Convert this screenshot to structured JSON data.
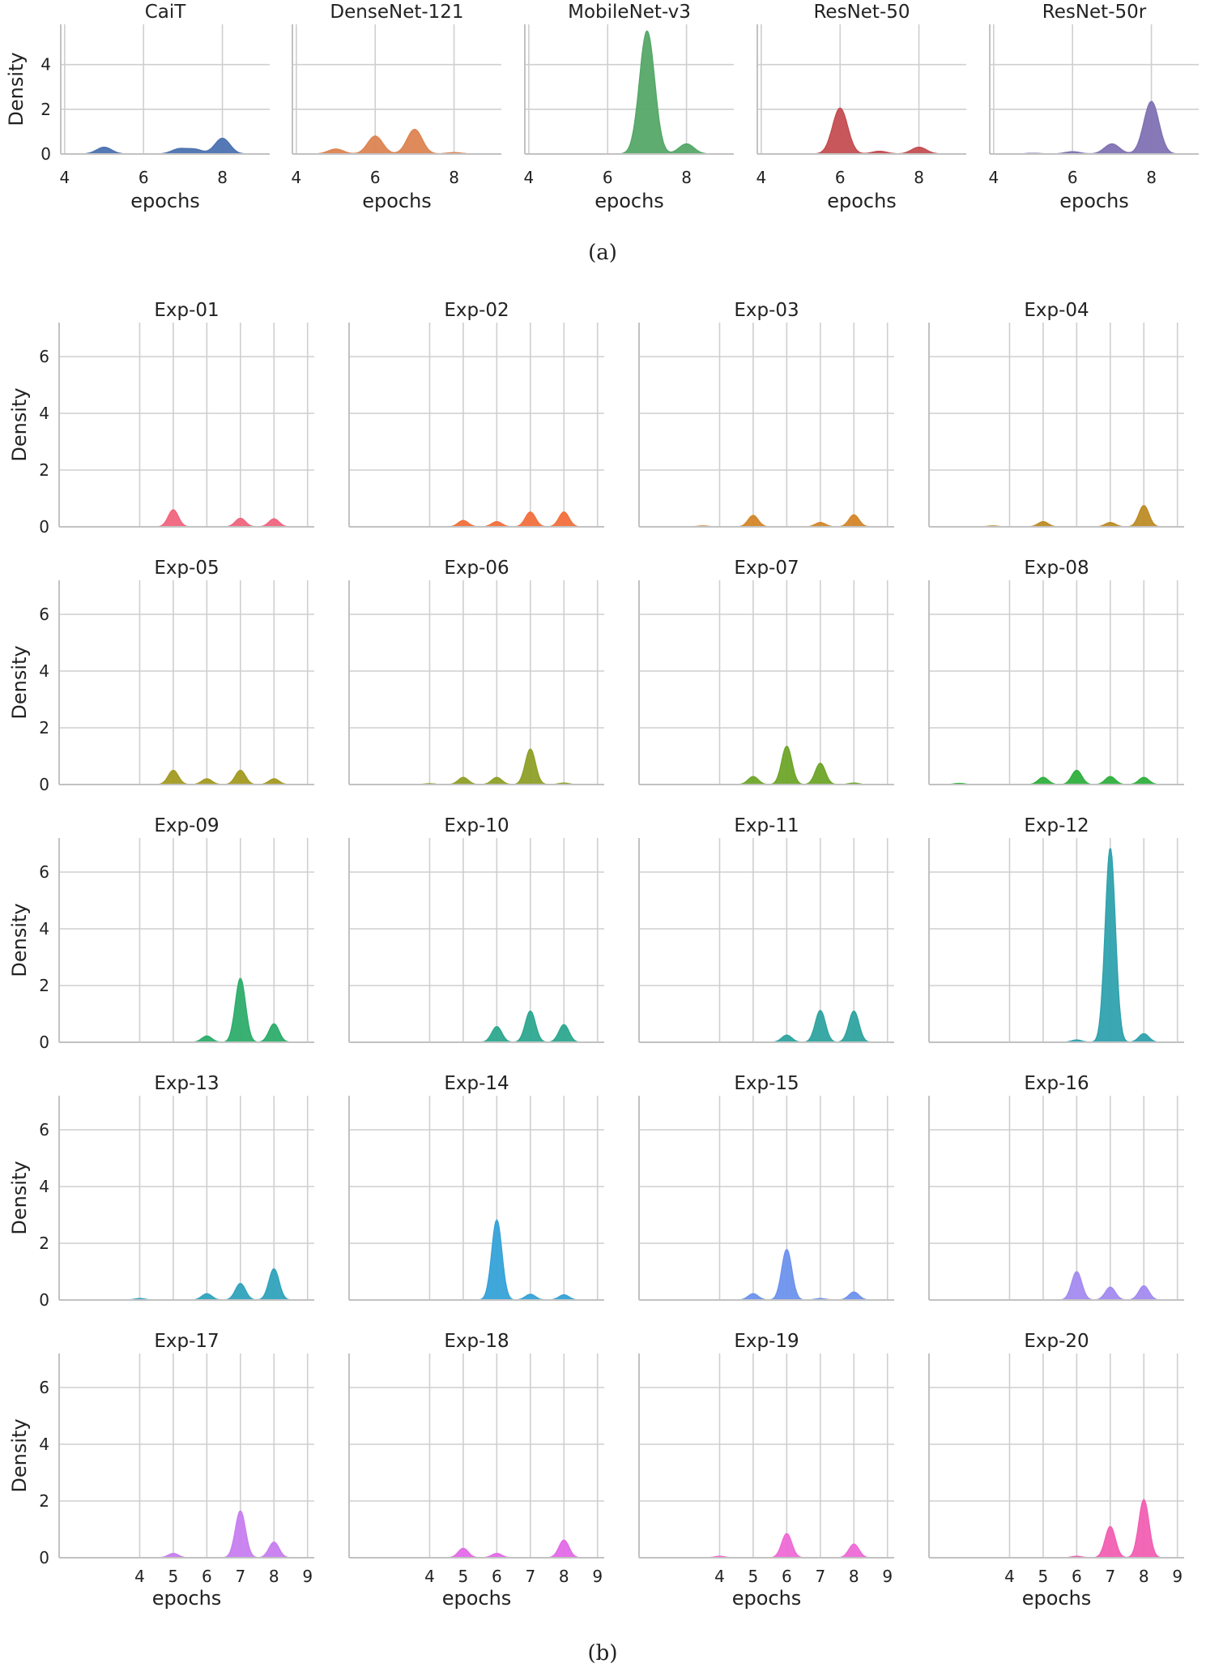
{
  "chart_data": [
    {
      "type": "area",
      "kind": "kde",
      "caption": "(a)",
      "xlabel": "epochs",
      "ylabel": "Density",
      "xlim": [
        3.9,
        9.2
      ],
      "xticks": [
        4,
        6,
        8
      ],
      "ylim": [
        0,
        5.8
      ],
      "yticks": [
        0,
        2,
        4
      ],
      "grid": true,
      "panels": [
        {
          "title": "CaiT",
          "color": "#4c72b0",
          "peaks": [
            {
              "x": 5.0,
              "y": 0.3
            },
            {
              "x": 6.9,
              "y": 0.22
            },
            {
              "x": 7.3,
              "y": 0.2
            },
            {
              "x": 8.0,
              "y": 0.7
            }
          ]
        },
        {
          "title": "DenseNet-121",
          "color": "#dd8452",
          "peaks": [
            {
              "x": 5.0,
              "y": 0.22
            },
            {
              "x": 6.0,
              "y": 0.8
            },
            {
              "x": 7.0,
              "y": 1.1
            },
            {
              "x": 8.0,
              "y": 0.06
            }
          ]
        },
        {
          "title": "MobileNet-v3",
          "color": "#55a868",
          "peaks": [
            {
              "x": 7.0,
              "y": 5.5
            },
            {
              "x": 8.0,
              "y": 0.45
            }
          ]
        },
        {
          "title": "ResNet-50",
          "color": "#c44e52",
          "peaks": [
            {
              "x": 6.0,
              "y": 2.05
            },
            {
              "x": 7.0,
              "y": 0.12
            },
            {
              "x": 8.0,
              "y": 0.3
            }
          ]
        },
        {
          "title": "ResNet-50r",
          "color": "#8172b3",
          "peaks": [
            {
              "x": 5.0,
              "y": 0.03
            },
            {
              "x": 6.0,
              "y": 0.1
            },
            {
              "x": 7.0,
              "y": 0.45
            },
            {
              "x": 8.0,
              "y": 2.35
            }
          ]
        }
      ]
    },
    {
      "type": "area",
      "kind": "kde",
      "caption": "(b)",
      "xlabel": "epochs",
      "ylabel": "Density",
      "xlim": [
        1.6,
        9.2
      ],
      "xticks": [
        4,
        5,
        6,
        7,
        8,
        9
      ],
      "ylim": [
        0,
        7.2
      ],
      "yticks": [
        0,
        2,
        4,
        6
      ],
      "grid": true,
      "panels": [
        {
          "title": "Exp-01",
          "color": "#f0657e",
          "peaks": [
            {
              "x": 5.0,
              "y": 0.6
            },
            {
              "x": 7.0,
              "y": 0.3
            },
            {
              "x": 8.0,
              "y": 0.28
            }
          ]
        },
        {
          "title": "Exp-02",
          "color": "#f2703c",
          "peaks": [
            {
              "x": 5.0,
              "y": 0.22
            },
            {
              "x": 6.0,
              "y": 0.18
            },
            {
              "x": 7.0,
              "y": 0.52
            },
            {
              "x": 8.0,
              "y": 0.52
            }
          ]
        },
        {
          "title": "Exp-03",
          "color": "#d4862a",
          "peaks": [
            {
              "x": 3.5,
              "y": 0.03
            },
            {
              "x": 5.0,
              "y": 0.4
            },
            {
              "x": 7.0,
              "y": 0.15
            },
            {
              "x": 8.0,
              "y": 0.42
            }
          ]
        },
        {
          "title": "Exp-04",
          "color": "#bd8c26",
          "peaks": [
            {
              "x": 3.5,
              "y": 0.03
            },
            {
              "x": 5.0,
              "y": 0.18
            },
            {
              "x": 7.0,
              "y": 0.15
            },
            {
              "x": 8.0,
              "y": 0.75
            }
          ]
        },
        {
          "title": "Exp-05",
          "color": "#a39a22",
          "peaks": [
            {
              "x": 5.0,
              "y": 0.5
            },
            {
              "x": 6.0,
              "y": 0.2
            },
            {
              "x": 7.0,
              "y": 0.5
            },
            {
              "x": 8.0,
              "y": 0.2
            }
          ]
        },
        {
          "title": "Exp-06",
          "color": "#8fa028",
          "peaks": [
            {
              "x": 4.0,
              "y": 0.03
            },
            {
              "x": 5.0,
              "y": 0.25
            },
            {
              "x": 6.0,
              "y": 0.25
            },
            {
              "x": 7.0,
              "y": 1.25
            },
            {
              "x": 8.0,
              "y": 0.05
            }
          ]
        },
        {
          "title": "Exp-07",
          "color": "#6ea52a",
          "peaks": [
            {
              "x": 5.0,
              "y": 0.28
            },
            {
              "x": 6.0,
              "y": 1.35
            },
            {
              "x": 7.0,
              "y": 0.75
            },
            {
              "x": 8.0,
              "y": 0.05
            }
          ]
        },
        {
          "title": "Exp-08",
          "color": "#2fb03e",
          "peaks": [
            {
              "x": 2.5,
              "y": 0.04
            },
            {
              "x": 5.0,
              "y": 0.25
            },
            {
              "x": 6.0,
              "y": 0.5
            },
            {
              "x": 7.0,
              "y": 0.28
            },
            {
              "x": 8.0,
              "y": 0.25
            }
          ]
        },
        {
          "title": "Exp-09",
          "color": "#2ead6c",
          "peaks": [
            {
              "x": 6.0,
              "y": 0.22
            },
            {
              "x": 7.0,
              "y": 2.25
            },
            {
              "x": 8.0,
              "y": 0.65
            }
          ]
        },
        {
          "title": "Exp-10",
          "color": "#2ea88f",
          "peaks": [
            {
              "x": 6.0,
              "y": 0.55
            },
            {
              "x": 7.0,
              "y": 1.1
            },
            {
              "x": 8.0,
              "y": 0.62
            }
          ]
        },
        {
          "title": "Exp-11",
          "color": "#2fa4a0",
          "peaks": [
            {
              "x": 6.0,
              "y": 0.25
            },
            {
              "x": 7.0,
              "y": 1.12
            },
            {
              "x": 8.0,
              "y": 1.1
            }
          ]
        },
        {
          "title": "Exp-12",
          "color": "#30a2ae",
          "peaks": [
            {
              "x": 6.0,
              "y": 0.08
            },
            {
              "x": 7.0,
              "y": 6.85
            },
            {
              "x": 8.0,
              "y": 0.3
            }
          ]
        },
        {
          "title": "Exp-13",
          "color": "#31a3bd",
          "peaks": [
            {
              "x": 4.0,
              "y": 0.05
            },
            {
              "x": 6.0,
              "y": 0.22
            },
            {
              "x": 7.0,
              "y": 0.58
            },
            {
              "x": 8.0,
              "y": 1.1
            }
          ]
        },
        {
          "title": "Exp-14",
          "color": "#36a2d8",
          "peaks": [
            {
              "x": 6.0,
              "y": 2.82
            },
            {
              "x": 7.0,
              "y": 0.2
            },
            {
              "x": 8.0,
              "y": 0.18
            }
          ]
        },
        {
          "title": "Exp-15",
          "color": "#6e92ee",
          "peaks": [
            {
              "x": 5.0,
              "y": 0.22
            },
            {
              "x": 6.0,
              "y": 1.78
            },
            {
              "x": 7.0,
              "y": 0.05
            },
            {
              "x": 8.0,
              "y": 0.28
            }
          ]
        },
        {
          "title": "Exp-16",
          "color": "#a38bf0",
          "peaks": [
            {
              "x": 6.0,
              "y": 1.0
            },
            {
              "x": 7.0,
              "y": 0.45
            },
            {
              "x": 8.0,
              "y": 0.5
            }
          ]
        },
        {
          "title": "Exp-17",
          "color": "#c77ef0",
          "peaks": [
            {
              "x": 5.0,
              "y": 0.15
            },
            {
              "x": 7.0,
              "y": 1.65
            },
            {
              "x": 8.0,
              "y": 0.55
            }
          ]
        },
        {
          "title": "Exp-18",
          "color": "#e36ae8",
          "peaks": [
            {
              "x": 5.0,
              "y": 0.33
            },
            {
              "x": 6.0,
              "y": 0.15
            },
            {
              "x": 8.0,
              "y": 0.62
            }
          ]
        },
        {
          "title": "Exp-19",
          "color": "#ee6ad6",
          "peaks": [
            {
              "x": 4.0,
              "y": 0.05
            },
            {
              "x": 6.0,
              "y": 0.85
            },
            {
              "x": 8.0,
              "y": 0.48
            }
          ]
        },
        {
          "title": "Exp-20",
          "color": "#f25fb3",
          "peaks": [
            {
              "x": 6.0,
              "y": 0.05
            },
            {
              "x": 7.0,
              "y": 1.1
            },
            {
              "x": 8.0,
              "y": 2.05
            }
          ]
        }
      ]
    }
  ]
}
